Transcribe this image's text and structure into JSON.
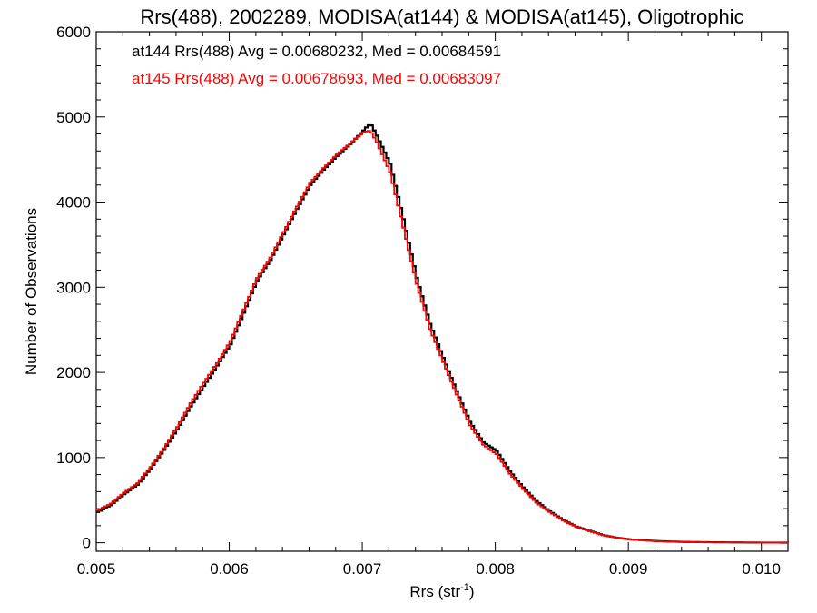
{
  "chart_data": {
    "type": "line",
    "title": "Rrs(488), 2002289, MODISA(at144) & MODISA(at145), Oligotrophic",
    "xlabel": "Rrs (str",
    "xlabel_sup": "-1",
    "xlabel_close": ")",
    "ylabel": "Number of Observations",
    "xlim": [
      0.005,
      0.0102
    ],
    "ylim": [
      -100,
      6000
    ],
    "xticks": [
      0.005,
      0.006,
      0.007,
      0.008,
      0.009,
      0.01
    ],
    "xtick_labels": [
      "0.005",
      "0.006",
      "0.007",
      "0.008",
      "0.009",
      "0.010"
    ],
    "yticks": [
      0,
      1000,
      2000,
      3000,
      4000,
      5000,
      6000
    ],
    "ytick_labels": [
      "0",
      "1000",
      "2000",
      "3000",
      "4000",
      "5000",
      "6000"
    ],
    "stepped": true,
    "grid": false,
    "series": [
      {
        "name": "at144",
        "color": "#000000",
        "stats_text": "at144 Rrs(488) Avg = 0.00680232, Med = 0.00684591",
        "x": [
          0.005,
          0.0051,
          0.0052,
          0.0053,
          0.0054,
          0.0055,
          0.0056,
          0.0057,
          0.0058,
          0.0059,
          0.006,
          0.0061,
          0.0062,
          0.0063,
          0.0064,
          0.0065,
          0.0066,
          0.0067,
          0.0068,
          0.0069,
          0.007,
          0.00705,
          0.0071,
          0.0072,
          0.0073,
          0.0074,
          0.0075,
          0.0076,
          0.0077,
          0.0078,
          0.0079,
          0.008,
          0.0081,
          0.0082,
          0.0083,
          0.0084,
          0.0085,
          0.0086,
          0.0087,
          0.0088,
          0.0089,
          0.009,
          0.0091,
          0.0092,
          0.0093,
          0.0094,
          0.0095,
          0.0096,
          0.0097,
          0.0098,
          0.0099,
          0.01,
          0.0101,
          0.0102
        ],
        "y": [
          360,
          440,
          570,
          680,
          870,
          1090,
          1330,
          1600,
          1840,
          2080,
          2330,
          2700,
          3080,
          3320,
          3620,
          3920,
          4200,
          4380,
          4540,
          4680,
          4840,
          4930,
          4780,
          4450,
          3800,
          3110,
          2570,
          2170,
          1780,
          1420,
          1180,
          1080,
          840,
          650,
          490,
          370,
          270,
          190,
          140,
          90,
          60,
          40,
          30,
          20,
          15,
          10,
          8,
          6,
          5,
          4,
          3,
          2,
          2,
          1
        ]
      },
      {
        "name": "at145",
        "color": "#ff0000",
        "stats_text": "at145 Rrs(488) Avg = 0.00678693, Med = 0.00683097",
        "x": [
          0.005,
          0.0051,
          0.0052,
          0.0053,
          0.0054,
          0.0055,
          0.0056,
          0.0057,
          0.0058,
          0.0059,
          0.006,
          0.0061,
          0.0062,
          0.0063,
          0.0064,
          0.0065,
          0.0066,
          0.0067,
          0.0068,
          0.0069,
          0.007,
          0.00705,
          0.0071,
          0.0072,
          0.0073,
          0.0074,
          0.0075,
          0.0076,
          0.0077,
          0.0078,
          0.0079,
          0.008,
          0.0081,
          0.0082,
          0.0083,
          0.0084,
          0.0085,
          0.0086,
          0.0087,
          0.0088,
          0.0089,
          0.009,
          0.0091,
          0.0092,
          0.0093,
          0.0094,
          0.0095,
          0.0096,
          0.0097,
          0.0098,
          0.0099,
          0.01,
          0.0101,
          0.0102
        ],
        "y": [
          380,
          460,
          590,
          700,
          890,
          1110,
          1360,
          1640,
          1880,
          2110,
          2370,
          2740,
          3110,
          3350,
          3650,
          3950,
          4230,
          4400,
          4560,
          4690,
          4820,
          4840,
          4700,
          4350,
          3700,
          3040,
          2510,
          2120,
          1740,
          1380,
          1150,
          1040,
          810,
          630,
          470,
          360,
          260,
          185,
          135,
          88,
          58,
          38,
          28,
          18,
          13,
          9,
          7,
          5,
          4,
          3,
          3,
          2,
          2,
          1
        ]
      }
    ]
  }
}
